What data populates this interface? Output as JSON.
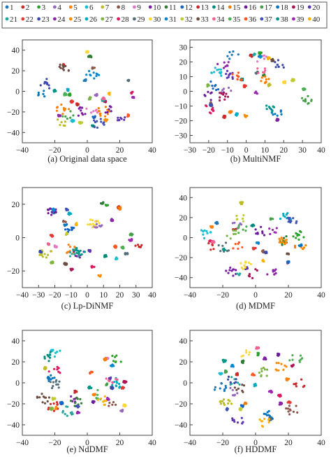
{
  "legend": {
    "items": [
      "1",
      "2",
      "3",
      "4",
      "5",
      "6",
      "7",
      "8",
      "9",
      "10",
      "11",
      "12",
      "13",
      "14",
      "15",
      "16",
      "17",
      "18",
      "19",
      "20",
      "21",
      "22",
      "23",
      "24",
      "25",
      "26",
      "27",
      "28",
      "29",
      "30",
      "31",
      "32",
      "33",
      "34",
      "35",
      "36",
      "37",
      "38",
      "39",
      "40"
    ],
    "colors": [
      "#1f77b4",
      "#d62728",
      "#2ca02c",
      "#9467bd",
      "#ff7f0e",
      "#17becf",
      "#bcbd22",
      "#8c564b",
      "#e377c2",
      "#7b1fa2",
      "#2e7d32",
      "#1565c0",
      "#c62828",
      "#00897b",
      "#f57c00",
      "#6a1b9a",
      "#43a047",
      "#0277bd",
      "#ad1457",
      "#5e35b1",
      "#26a69a",
      "#e53935",
      "#3949ab",
      "#8e24aa",
      "#fb8c00",
      "#00acc1",
      "#7cb342",
      "#d81b60",
      "#546e7a",
      "#fdd835",
      "#0288d1",
      "#c0ca33",
      "#6d4c41",
      "#f06292",
      "#4caf50",
      "#ff5722",
      "#3f51b5",
      "#009688",
      "#9c27b0",
      "#ffb300"
    ]
  },
  "chart_data": [
    {
      "type": "scatter",
      "panel_label": "(a) Original data space",
      "xlim": [
        -40,
        40
      ],
      "ylim": [
        -50,
        40
      ],
      "xticks": [
        "−40",
        "−20",
        "0",
        "20",
        "40"
      ],
      "yticks": [
        "40",
        "20",
        "0",
        "−20",
        "−40"
      ],
      "clusters": 40,
      "grid": false,
      "points": []
    },
    {
      "type": "scatter",
      "panel_label": "(b) MultiNMF",
      "xlim": [
        -30,
        40
      ],
      "ylim": [
        -30,
        30
      ],
      "xticks": [
        "−30",
        "−20",
        "−10",
        "0",
        "10",
        "20",
        "30",
        "40"
      ],
      "yticks": [
        "30",
        "20",
        "10",
        "0",
        "−10",
        "−20",
        "−30"
      ],
      "clusters": 40,
      "grid": false,
      "points": []
    },
    {
      "type": "scatter",
      "panel_label": "(c) Lp-DiNMF",
      "xlim": [
        -40,
        40
      ],
      "ylim": [
        -30,
        30
      ],
      "xticks": [
        "−40",
        "−30",
        "−20",
        "−10",
        "0",
        "10",
        "20",
        "30",
        "40"
      ],
      "yticks": [
        "20",
        "0",
        "−20"
      ],
      "clusters": 40,
      "grid": false,
      "points": []
    },
    {
      "type": "scatter",
      "panel_label": "(d) MDMF",
      "xlim": [
        -50,
        50
      ],
      "ylim": [
        -50,
        50
      ],
      "xticks": [
        "−40",
        "−20",
        "0",
        "20",
        "40"
      ],
      "yticks": [
        "40",
        "20",
        "0",
        "−20",
        "−40"
      ],
      "clusters": 40,
      "grid": false,
      "points": []
    },
    {
      "type": "scatter",
      "panel_label": "(e) NdDMF",
      "xlim": [
        -50,
        50
      ],
      "ylim": [
        -50,
        50
      ],
      "xticks": [
        "−40",
        "−20",
        "0",
        "20",
        "40"
      ],
      "yticks": [
        "40",
        "20",
        "0",
        "−20",
        "−40"
      ],
      "clusters": 40,
      "grid": false,
      "points": []
    },
    {
      "type": "scatter",
      "panel_label": "(f) HDDMF",
      "xlim": [
        -50,
        50
      ],
      "ylim": [
        -50,
        50
      ],
      "xticks": [
        "−40",
        "−20",
        "0",
        "20",
        "40"
      ],
      "yticks": [
        "40",
        "20",
        "0",
        "−20",
        "−40"
      ],
      "clusters": 40,
      "grid": false,
      "points": []
    }
  ]
}
